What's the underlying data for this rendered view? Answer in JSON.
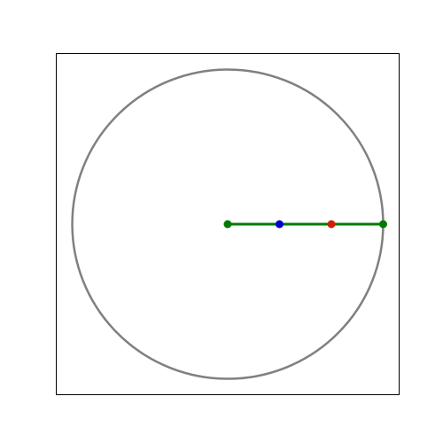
{
  "diagram": {
    "colors": {
      "frame": "#000000",
      "circle": "#808080",
      "radius_line": "#007a00",
      "endpoint": "#007a00",
      "point_a": "#0000cc",
      "point_b": "#cc2200"
    },
    "axes": {
      "xlim": [
        -1.1,
        1.1
      ],
      "ylim": [
        -1.1,
        1.1
      ],
      "grid": false
    },
    "circle": {
      "center": [
        0,
        0
      ],
      "radius": 1
    },
    "segment": {
      "from": [
        0,
        0
      ],
      "to": [
        1,
        0
      ]
    },
    "points": [
      {
        "name": "center-point",
        "x": 0,
        "y": 0,
        "color_key": "endpoint"
      },
      {
        "name": "blue-point",
        "x": 0.333,
        "y": 0,
        "color_key": "point_a"
      },
      {
        "name": "red-point",
        "x": 0.667,
        "y": 0,
        "color_key": "point_b"
      },
      {
        "name": "edge-point",
        "x": 1,
        "y": 0,
        "color_key": "endpoint"
      }
    ]
  }
}
